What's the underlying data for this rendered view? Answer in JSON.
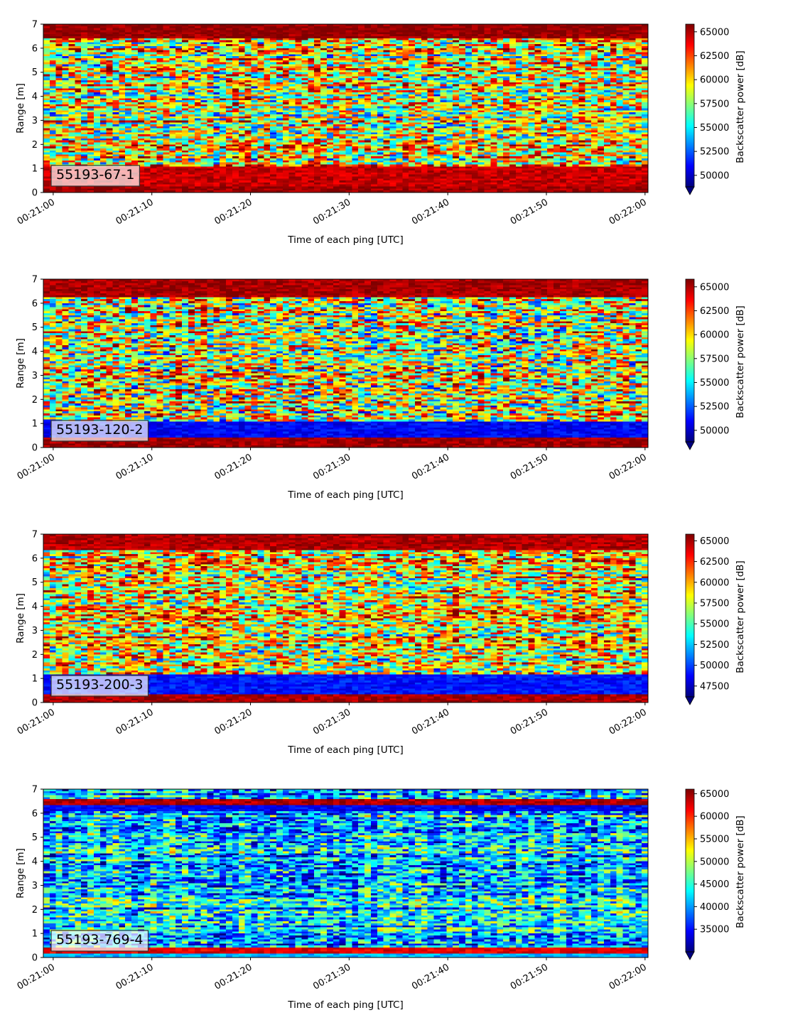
{
  "chart_data": [
    {
      "type": "heatmap",
      "panel_label": "55193-67-1",
      "xlabel": "Time of each ping [UTC]",
      "ylabel": "Range [m]",
      "colorbar_label": "Backscatter power [dB]",
      "xticks": [
        "00:21:00",
        "00:21:10",
        "00:21:20",
        "00:21:30",
        "00:21:40",
        "00:21:50",
        "00:22:00"
      ],
      "xlim_seconds": [
        -1,
        60.3
      ],
      "yticks": [
        0,
        1,
        2,
        3,
        4,
        5,
        6,
        7
      ],
      "ylim": [
        0,
        7
      ],
      "clim": [
        48800,
        65800
      ],
      "cticks": [
        50000,
        52500,
        55000,
        57500,
        60000,
        62500,
        65000
      ],
      "colormap": "jet",
      "colorbar_extend": "min",
      "seed": 11,
      "bands": [
        {
          "from": 0.0,
          "to": 0.28,
          "level": 0.97
        },
        {
          "from": 0.28,
          "to": 1.1,
          "level": 0.93
        },
        {
          "from": 6.45,
          "to": 7.0,
          "level": 0.98
        }
      ],
      "background": {
        "mean": 0.62,
        "spread": 0.42
      }
    },
    {
      "type": "heatmap",
      "panel_label": "55193-120-2",
      "xlabel": "Time of each ping [UTC]",
      "ylabel": "Range [m]",
      "colorbar_label": "Backscatter power [dB]",
      "xticks": [
        "00:21:00",
        "00:21:10",
        "00:21:20",
        "00:21:30",
        "00:21:40",
        "00:21:50",
        "00:22:00"
      ],
      "xlim_seconds": [
        -1,
        60.3
      ],
      "yticks": [
        0,
        1,
        2,
        3,
        4,
        5,
        6,
        7
      ],
      "ylim": [
        0,
        7
      ],
      "clim": [
        48800,
        65800
      ],
      "cticks": [
        50000,
        52500,
        55000,
        57500,
        60000,
        62500,
        65000
      ],
      "colormap": "jet",
      "colorbar_extend": "min",
      "seed": 22,
      "bands": [
        {
          "from": 0.0,
          "to": 0.45,
          "level": 0.97
        },
        {
          "from": 0.45,
          "to": 1.05,
          "level": 0.12
        },
        {
          "from": 6.25,
          "to": 7.0,
          "level": 0.96
        }
      ],
      "background": {
        "mean": 0.58,
        "spread": 0.45
      }
    },
    {
      "type": "heatmap",
      "panel_label": "55193-200-3",
      "xlabel": "Time of each ping [UTC]",
      "ylabel": "Range [m]",
      "colorbar_label": "Backscatter power [dB]",
      "xticks": [
        "00:21:00",
        "00:21:10",
        "00:21:20",
        "00:21:30",
        "00:21:40",
        "00:21:50",
        "00:22:00"
      ],
      "xlim_seconds": [
        -1,
        60.3
      ],
      "yticks": [
        0,
        1,
        2,
        3,
        4,
        5,
        6,
        7
      ],
      "ylim": [
        0,
        7
      ],
      "clim": [
        46200,
        65800
      ],
      "cticks": [
        47500,
        50000,
        52500,
        55000,
        57500,
        60000,
        62500,
        65000
      ],
      "colormap": "jet",
      "colorbar_extend": "min",
      "seed": 33,
      "bands": [
        {
          "from": 0.0,
          "to": 0.35,
          "level": 0.96
        },
        {
          "from": 0.35,
          "to": 1.2,
          "level": 0.14
        },
        {
          "from": 6.3,
          "to": 7.0,
          "level": 0.95
        }
      ],
      "background": {
        "mean": 0.62,
        "spread": 0.4
      }
    },
    {
      "type": "heatmap",
      "panel_label": "55193-769-4",
      "xlabel": "Time of each ping [UTC]",
      "ylabel": "Range [m]",
      "colorbar_label": "Backscatter power [dB]",
      "xticks": [
        "00:21:00",
        "00:21:10",
        "00:21:20",
        "00:21:30",
        "00:21:40",
        "00:21:50",
        "00:22:00"
      ],
      "xlim_seconds": [
        -1,
        60.3
      ],
      "yticks": [
        0,
        1,
        2,
        3,
        4,
        5,
        6,
        7
      ],
      "ylim": [
        0,
        7
      ],
      "clim": [
        30000,
        66000
      ],
      "cticks": [
        35000,
        40000,
        45000,
        50000,
        55000,
        60000,
        65000
      ],
      "colormap": "jet",
      "colorbar_extend": "min",
      "seed": 44,
      "bands": [
        {
          "from": 0.0,
          "to": 0.18,
          "level": 0.3
        },
        {
          "from": 0.18,
          "to": 0.38,
          "level": 0.9
        },
        {
          "from": 6.35,
          "to": 6.6,
          "level": 0.95
        },
        {
          "from": 6.05,
          "to": 6.35,
          "level": 0.12
        }
      ],
      "background": {
        "mean": 0.32,
        "spread": 0.3
      }
    }
  ]
}
